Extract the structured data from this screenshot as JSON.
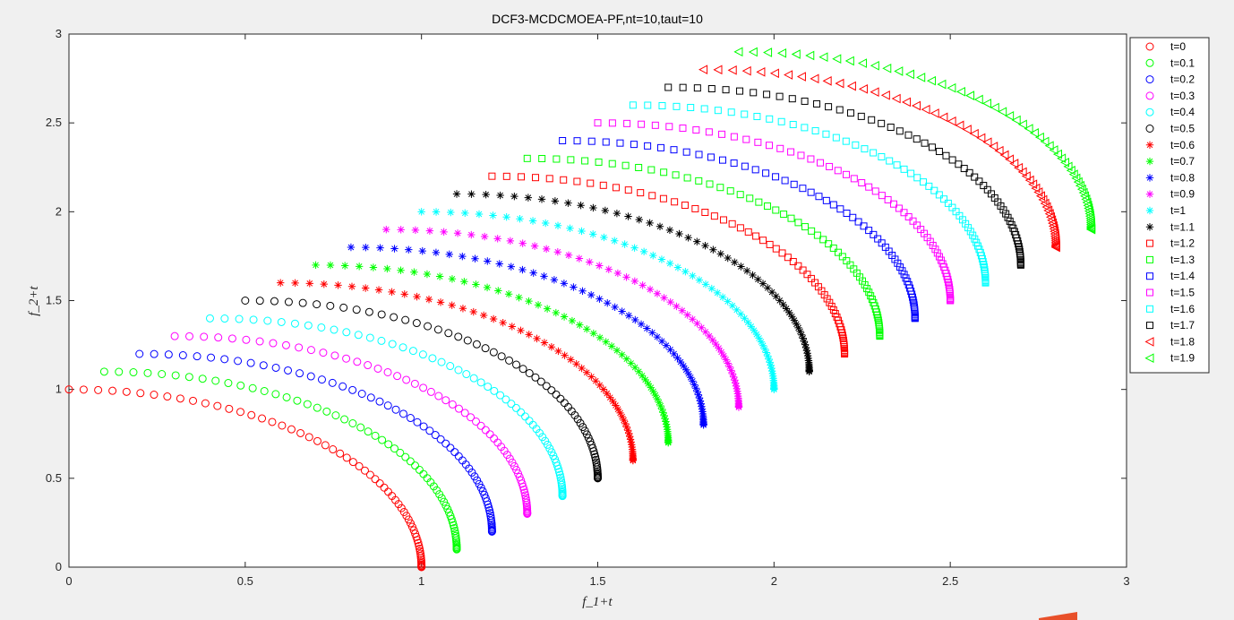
{
  "chart_data": {
    "type": "scatter",
    "title": "DCF3-MCDCMOEA-PF,nt=10,taut=10",
    "xlabel": "f_1+t",
    "ylabel": "f_2+t",
    "xlim": [
      0,
      3
    ],
    "ylim": [
      0,
      3
    ],
    "xticks": [
      "0",
      "0.5",
      "1",
      "1.5",
      "2",
      "2.5",
      "3"
    ],
    "yticks": [
      "0",
      "0.5",
      "1",
      "1.5",
      "2",
      "2.5",
      "3"
    ],
    "grid": false,
    "legend_position": "top-right, outside plot",
    "curve_note": "each series lies on the quarter arc x = t + sin(theta), y = t + cos(theta)",
    "series": [
      {
        "name": "t=0",
        "t": 0.0,
        "marker": "circle",
        "color": "#ff0000",
        "x_range": [
          0.0,
          1.0
        ],
        "y_range": [
          0.0,
          1.0
        ]
      },
      {
        "name": "t=0.1",
        "t": 0.1,
        "marker": "circle",
        "color": "#00ff00",
        "x_range": [
          0.1,
          1.1
        ],
        "y_range": [
          0.1,
          1.1
        ]
      },
      {
        "name": "t=0.2",
        "t": 0.2,
        "marker": "circle",
        "color": "#0000ff",
        "x_range": [
          0.2,
          1.2
        ],
        "y_range": [
          0.2,
          1.2
        ]
      },
      {
        "name": "t=0.3",
        "t": 0.3,
        "marker": "circle",
        "color": "#ff00ff",
        "x_range": [
          0.3,
          1.3
        ],
        "y_range": [
          0.3,
          1.3
        ]
      },
      {
        "name": "t=0.4",
        "t": 0.4,
        "marker": "circle",
        "color": "#00ffff",
        "x_range": [
          0.4,
          1.4
        ],
        "y_range": [
          0.4,
          1.4
        ]
      },
      {
        "name": "t=0.5",
        "t": 0.5,
        "marker": "circle",
        "color": "#000000",
        "x_range": [
          0.5,
          1.5
        ],
        "y_range": [
          0.5,
          1.5
        ]
      },
      {
        "name": "t=0.6",
        "t": 0.6,
        "marker": "asterisk",
        "color": "#ff0000",
        "x_range": [
          0.6,
          1.6
        ],
        "y_range": [
          0.6,
          1.6
        ]
      },
      {
        "name": "t=0.7",
        "t": 0.7,
        "marker": "asterisk",
        "color": "#00ff00",
        "x_range": [
          0.7,
          1.7
        ],
        "y_range": [
          0.7,
          1.7
        ]
      },
      {
        "name": "t=0.8",
        "t": 0.8,
        "marker": "asterisk",
        "color": "#0000ff",
        "x_range": [
          0.8,
          1.8
        ],
        "y_range": [
          0.8,
          1.8
        ]
      },
      {
        "name": "t=0.9",
        "t": 0.9,
        "marker": "asterisk",
        "color": "#ff00ff",
        "x_range": [
          0.9,
          1.9
        ],
        "y_range": [
          0.9,
          1.9
        ]
      },
      {
        "name": "t=1",
        "t": 1.0,
        "marker": "asterisk",
        "color": "#00ffff",
        "x_range": [
          1.0,
          2.0
        ],
        "y_range": [
          1.0,
          2.0
        ]
      },
      {
        "name": "t=1.1",
        "t": 1.1,
        "marker": "asterisk",
        "color": "#000000",
        "x_range": [
          1.1,
          2.1
        ],
        "y_range": [
          1.1,
          2.1
        ]
      },
      {
        "name": "t=1.2",
        "t": 1.2,
        "marker": "square",
        "color": "#ff0000",
        "x_range": [
          1.2,
          2.2
        ],
        "y_range": [
          1.2,
          2.2
        ]
      },
      {
        "name": "t=1.3",
        "t": 1.3,
        "marker": "square",
        "color": "#00ff00",
        "x_range": [
          1.3,
          2.3
        ],
        "y_range": [
          1.3,
          2.3
        ]
      },
      {
        "name": "t=1.4",
        "t": 1.4,
        "marker": "square",
        "color": "#0000ff",
        "x_range": [
          1.4,
          2.4
        ],
        "y_range": [
          1.4,
          2.4
        ]
      },
      {
        "name": "t=1.5",
        "t": 1.5,
        "marker": "square",
        "color": "#ff00ff",
        "x_range": [
          1.5,
          2.5
        ],
        "y_range": [
          1.5,
          2.5
        ]
      },
      {
        "name": "t=1.6",
        "t": 1.6,
        "marker": "square",
        "color": "#00ffff",
        "x_range": [
          1.6,
          2.6
        ],
        "y_range": [
          1.6,
          2.6
        ]
      },
      {
        "name": "t=1.7",
        "t": 1.7,
        "marker": "square",
        "color": "#000000",
        "x_range": [
          1.7,
          2.7
        ],
        "y_range": [
          1.7,
          2.7
        ]
      },
      {
        "name": "t=1.8",
        "t": 1.8,
        "marker": "triangle-left",
        "color": "#ff0000",
        "x_range": [
          1.8,
          2.8
        ],
        "y_range": [
          1.8,
          2.8
        ]
      },
      {
        "name": "t=1.9",
        "t": 1.9,
        "marker": "triangle-left",
        "color": "#00ff00",
        "x_range": [
          1.9,
          2.9
        ],
        "y_range": [
          1.9,
          2.9
        ]
      }
    ]
  }
}
